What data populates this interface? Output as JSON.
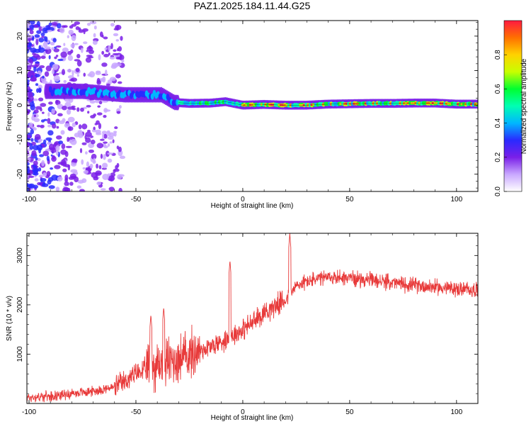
{
  "title": "PAZ1.2025.184.11.44.G25",
  "colors": {
    "snr_line": "#e83a3a",
    "colormap": [
      "#ffffff",
      "#c9a8ff",
      "#7a1fe8",
      "#2a2aff",
      "#00b7ff",
      "#00ffb3",
      "#00ff30",
      "#c8ff00",
      "#ffd200",
      "#ff7000",
      "#ff1a40"
    ]
  },
  "chart_data": [
    {
      "type": "heatmap",
      "xlabel": "Height of straight line (km)",
      "ylabel": "Frequency (Hz)",
      "xlim": [
        -101,
        110
      ],
      "ylim": [
        -25,
        24.5
      ],
      "xticks": [
        -100,
        -50,
        0,
        50,
        100
      ],
      "yticks": [
        -20,
        -10,
        0,
        10,
        20
      ],
      "colorbar": {
        "label": "Normalized spectral amplitude",
        "range": [
          0,
          1
        ],
        "ticks": [
          0.0,
          0.2,
          0.4,
          0.6,
          0.8
        ]
      },
      "ridge": {
        "description_points_x": [
          -85,
          -75,
          -65,
          -55,
          -45,
          -38,
          -32,
          -25,
          -15,
          -8,
          0,
          10,
          20,
          30,
          40,
          50,
          60,
          70,
          80,
          90,
          100,
          110
        ],
        "frequency_hz": [
          4,
          4,
          3.5,
          3,
          3,
          3,
          0.8,
          0.5,
          0.6,
          1.0,
          0,
          0.2,
          0,
          0,
          0.3,
          0.4,
          0.5,
          0.5,
          0.6,
          0.6,
          0.3,
          0.3
        ]
      }
    },
    {
      "type": "line",
      "xlabel": "Height of straight line (km)",
      "ylabel": "SNR (10 * v/v)",
      "xlim": [
        -101,
        110
      ],
      "ylim": [
        0,
        3450
      ],
      "xticks": [
        -100,
        -50,
        0,
        50,
        100
      ],
      "yticks": [
        1000,
        2000,
        3000
      ],
      "series": [
        {
          "x": [
            -101,
            -90,
            -80,
            -70,
            -60,
            -55,
            -50,
            -45,
            -40,
            -35,
            -30,
            -25,
            -20,
            -15,
            -10,
            -5,
            0,
            5,
            10,
            15,
            20,
            22,
            25,
            30,
            35,
            40,
            45,
            50,
            55,
            60,
            65,
            70,
            75,
            80,
            85,
            90,
            95,
            100,
            105,
            110
          ],
          "y": [
            120,
            150,
            200,
            250,
            330,
            450,
            600,
            700,
            780,
            850,
            900,
            980,
            1080,
            1150,
            1250,
            1380,
            1500,
            1650,
            1850,
            1980,
            2100,
            2200,
            2380,
            2480,
            2520,
            2550,
            2560,
            2550,
            2520,
            2500,
            2470,
            2450,
            2420,
            2400,
            2380,
            2360,
            2340,
            2320,
            2310,
            2300
          ],
          "spikes": [
            {
              "x": -6,
              "y": 2900
            },
            {
              "x": 22,
              "y": 3450
            },
            {
              "x": -37,
              "y": 1950
            },
            {
              "x": -43,
              "y": 1800
            }
          ]
        }
      ]
    }
  ]
}
